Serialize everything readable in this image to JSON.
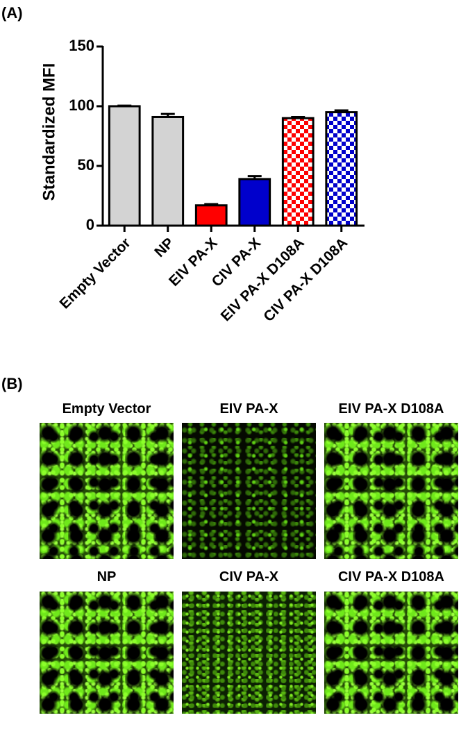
{
  "panel_labels": [
    "(A)",
    "(B)"
  ],
  "chart_data": {
    "type": "bar",
    "ylabel": "Standardized MFI",
    "categories": [
      "Empty Vector",
      "NP",
      "EIV PA-X",
      "CIV PA-X",
      "EIV PA-X D108A",
      "CIV PA-X D108A"
    ],
    "values": [
      100,
      91,
      17,
      39,
      90,
      95
    ],
    "errors": [
      0.5,
      2.5,
      1,
      2.5,
      1,
      1.5
    ],
    "colors": [
      "#d3d3d3",
      "#d3d3d3",
      "#ff0000",
      "#0000cc",
      "#ff0000",
      "#0000cc"
    ],
    "patterns": [
      "solid",
      "solid",
      "solid",
      "solid",
      "checker",
      "checker"
    ],
    "ylim": [
      0,
      150
    ],
    "yticks": [
      0,
      50,
      100,
      150
    ],
    "grid": false
  },
  "micrographs": [
    {
      "title": "Empty Vector"
    },
    {
      "title": "EIV PA-X"
    },
    {
      "title": "EIV PA-X D108A"
    },
    {
      "title": "NP"
    },
    {
      "title": "CIV PA-X"
    },
    {
      "title": "CIV PA-X D108A"
    }
  ]
}
